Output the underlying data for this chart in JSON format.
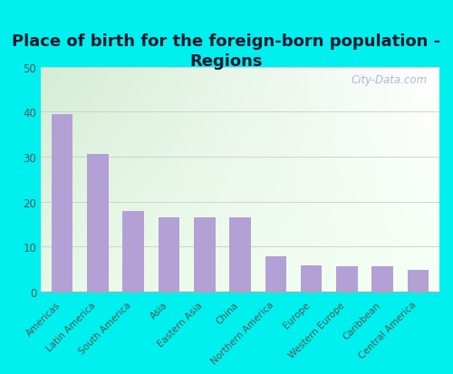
{
  "title": "Place of birth for the foreign-born population -\nRegions",
  "categories": [
    "Americas",
    "Latin America",
    "South America",
    "Asia",
    "Eastern Asia",
    "China",
    "Northern America",
    "Europe",
    "Western Europe",
    "Caribbean",
    "Central America"
  ],
  "values": [
    39.5,
    30.5,
    17.8,
    16.5,
    16.5,
    16.5,
    7.8,
    5.8,
    5.7,
    5.7,
    4.8
  ],
  "bar_color": "#b3a0d4",
  "ylim": [
    0,
    50
  ],
  "yticks": [
    0,
    10,
    20,
    30,
    40,
    50
  ],
  "bg_topleft": "#d4edd4",
  "bg_topright": "#ffffff",
  "bg_bottomleft": "#e8f8e8",
  "bg_bottomright": "#f8fff8",
  "outer_bg": "#00f0f0",
  "title_fontsize": 13,
  "tick_fontsize": 7.5,
  "watermark": "City-Data.com"
}
